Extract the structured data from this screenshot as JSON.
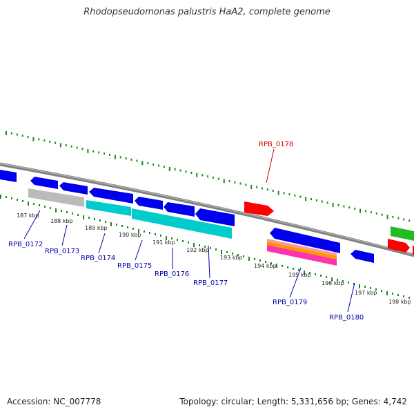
{
  "title": "Rhodopseudomonas palustris HaA2, complete genome",
  "footer": {
    "accession": "Accession: NC_007778",
    "stats": "Topology: circular; Length: 5,331,656 bp; Genes: 4,742"
  },
  "colors": {
    "backbone": "#808080",
    "ticks": "#1a8a1a",
    "gene_label": "#0000aa",
    "gene_label_highlight": "#cc0000",
    "forward_cds": "#ff0000",
    "reverse_cds": "#0000ee",
    "green_cds": "#22bb22",
    "gray_cds": "#bbbbbb",
    "cyan_cds": "#00cccc",
    "orange_cds": "#ff9900",
    "magenta_cds": "#ff33aa",
    "salmon_cds": "#ff9999"
  },
  "ruler": [
    "187 kbp",
    "188 kbp",
    "189 kbp",
    "190 kbp",
    "191 kbp",
    "192 kbp",
    "193 kbp",
    "194 kbp",
    "195 kbp",
    "196 kbp",
    "197 kbp",
    "198 kbp"
  ],
  "labels": [
    {
      "text": "RPB_0172",
      "kind": "normal"
    },
    {
      "text": "RPB_0173",
      "kind": "normal"
    },
    {
      "text": "RPB_0174",
      "kind": "normal"
    },
    {
      "text": "RPB_0175",
      "kind": "normal"
    },
    {
      "text": "RPB_0176",
      "kind": "normal"
    },
    {
      "text": "RPB_0177",
      "kind": "normal"
    },
    {
      "text": "RPB_0178",
      "kind": "highlight"
    },
    {
      "text": "RPB_0179",
      "kind": "normal"
    },
    {
      "text": "RPB_0180",
      "kind": "normal"
    }
  ]
}
